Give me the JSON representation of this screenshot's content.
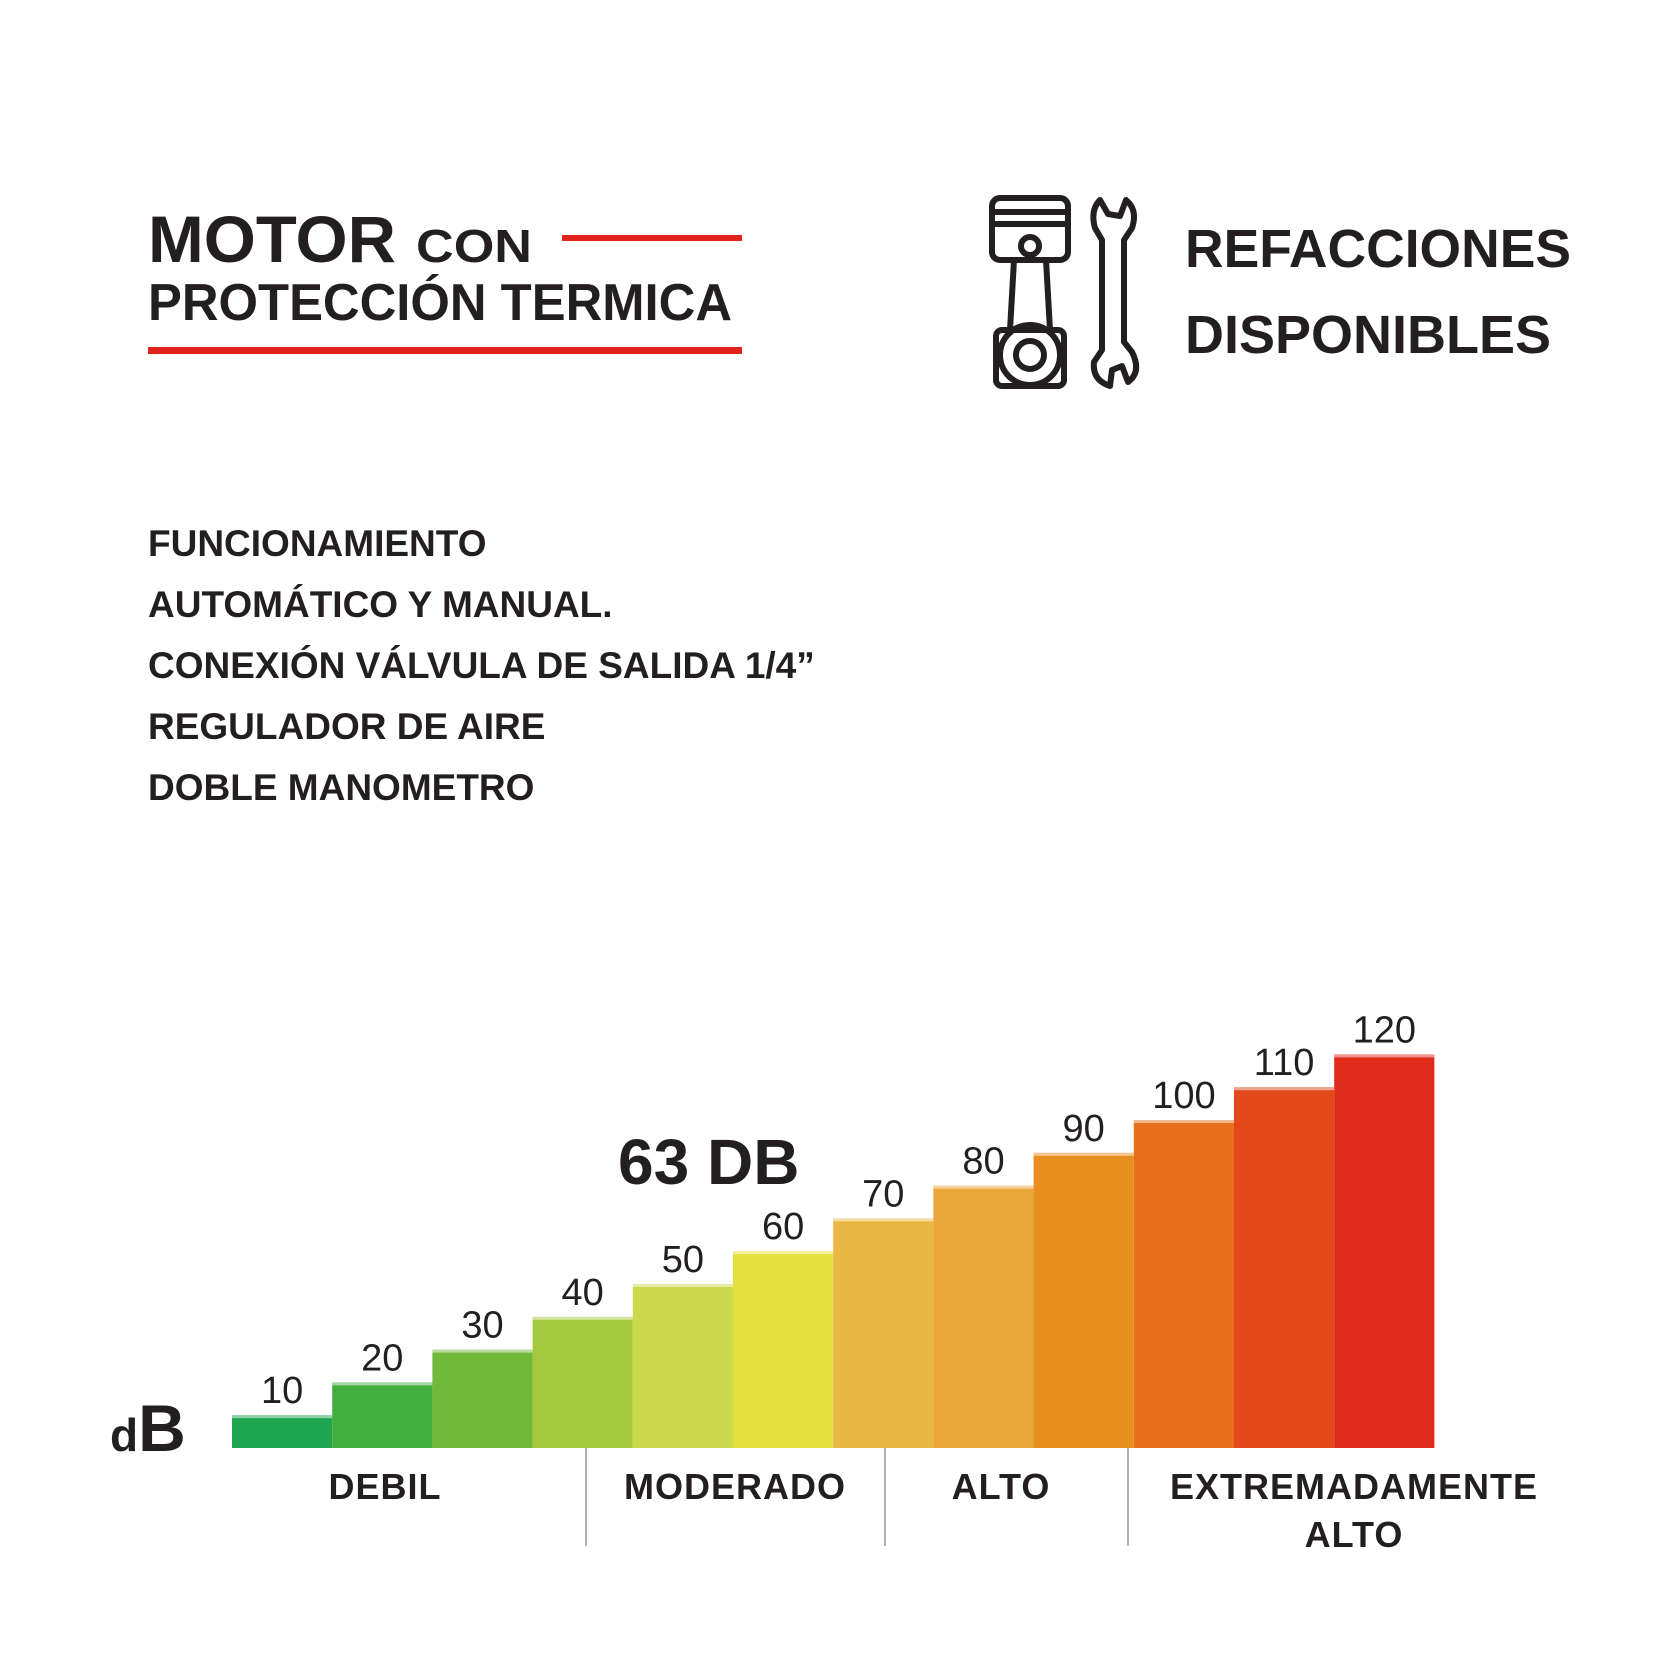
{
  "header": {
    "motor": "MOTOR",
    "con": "CON",
    "line2": "PROTECCIÓN TERMICA"
  },
  "spares": {
    "line1": "REFACCIONES",
    "line2": "DISPONIBLES"
  },
  "features": [
    "FUNCIONAMIENTO",
    "AUTOMÁTICO Y MANUAL.",
    "CONEXIÓN VÁLVULA DE SALIDA 1/4”",
    "REGULADOR DE AIRE",
    "DOBLE MANOMETRO"
  ],
  "noise": {
    "unit": "dB",
    "rating": "63 DB",
    "levels": [
      10,
      20,
      30,
      40,
      50,
      60,
      70,
      80,
      90,
      100,
      110,
      120
    ],
    "colors": [
      "#1ea550",
      "#43ae40",
      "#70b93a",
      "#a5c93e",
      "#cbd94a",
      "#e4df3c",
      "#e9b844",
      "#e9a73a",
      "#e98f20",
      "#e6701c",
      "#e34a1b",
      "#df2b1a"
    ],
    "ranges": [
      [
        "DEBIL"
      ],
      [
        "MODERADO"
      ],
      [
        "ALTO"
      ],
      [
        "EXTREMADAMENTE",
        "ALTO"
      ]
    ]
  }
}
